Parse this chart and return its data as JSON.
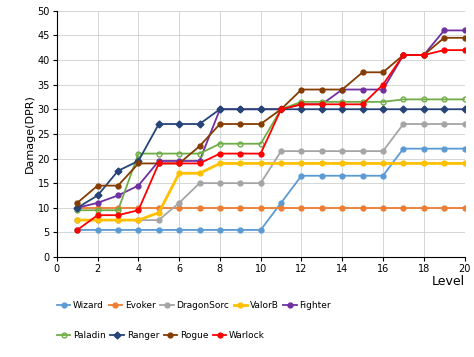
{
  "title": "",
  "xlabel": "Level",
  "ylabel": "Damage(DPR)",
  "xlim": [
    0,
    20
  ],
  "ylim": [
    0,
    50
  ],
  "xticks": [
    0,
    2,
    4,
    6,
    8,
    10,
    12,
    14,
    16,
    18,
    20
  ],
  "yticks": [
    0,
    5,
    10,
    15,
    20,
    25,
    30,
    35,
    40,
    45,
    50
  ],
  "series": {
    "Wizard": {
      "x": [
        1,
        2,
        3,
        4,
        5,
        6,
        7,
        8,
        9,
        10,
        11,
        12,
        13,
        14,
        15,
        16,
        17,
        18,
        19,
        20
      ],
      "y": [
        5.5,
        5.5,
        5.5,
        5.5,
        5.5,
        5.5,
        5.5,
        5.5,
        5.5,
        5.5,
        11,
        16.5,
        16.5,
        16.5,
        16.5,
        16.5,
        22,
        22,
        22,
        22
      ],
      "color": "#5B9BD5",
      "marker": "o",
      "marker_size": 3.5,
      "linewidth": 1.3
    },
    "Evoker": {
      "x": [
        1,
        2,
        3,
        4,
        5,
        6,
        7,
        8,
        9,
        10,
        11,
        12,
        13,
        14,
        15,
        16,
        17,
        18,
        19,
        20
      ],
      "y": [
        10,
        10,
        10,
        10,
        10,
        10,
        10,
        10,
        10,
        10,
        10,
        10,
        10,
        10,
        10,
        10,
        10,
        10,
        10,
        10
      ],
      "color": "#ED7D31",
      "marker": "o",
      "marker_size": 3.5,
      "linewidth": 1.3
    },
    "DragonSorc": {
      "x": [
        1,
        2,
        3,
        4,
        5,
        6,
        7,
        8,
        9,
        10,
        11,
        12,
        13,
        14,
        15,
        16,
        17,
        18,
        19,
        20
      ],
      "y": [
        7.5,
        7.5,
        7.5,
        7.5,
        7.5,
        11,
        15,
        15,
        15,
        15,
        21.5,
        21.5,
        21.5,
        21.5,
        21.5,
        21.5,
        27,
        27,
        27,
        27
      ],
      "color": "#A5A5A5",
      "marker": "o",
      "marker_size": 3.5,
      "linewidth": 1.3
    },
    "ValorB": {
      "x": [
        1,
        2,
        3,
        4,
        5,
        6,
        7,
        8,
        9,
        10,
        11,
        12,
        13,
        14,
        15,
        16,
        17,
        18,
        19,
        20
      ],
      "y": [
        7.5,
        7.5,
        7.5,
        7.5,
        9,
        17,
        17,
        19,
        19,
        19,
        19,
        19,
        19,
        19,
        19,
        19,
        19,
        19,
        19,
        19
      ],
      "color": "#FFC000",
      "marker": "o",
      "marker_size": 3.5,
      "linewidth": 2.0
    },
    "Fighter": {
      "x": [
        1,
        2,
        3,
        4,
        5,
        6,
        7,
        8,
        9,
        10,
        11,
        12,
        13,
        14,
        15,
        16,
        17,
        18,
        19,
        20
      ],
      "y": [
        10,
        11,
        12.5,
        14.5,
        19.5,
        19.5,
        19.5,
        30,
        30,
        30,
        30,
        31,
        31,
        34,
        34,
        34,
        41,
        41,
        46,
        46
      ],
      "color": "#7030A0",
      "marker": "o",
      "marker_size": 3.5,
      "linewidth": 1.3
    },
    "Paladin": {
      "x": [
        1,
        2,
        3,
        4,
        5,
        6,
        7,
        8,
        9,
        10,
        11,
        12,
        13,
        14,
        15,
        16,
        17,
        18,
        19,
        20
      ],
      "y": [
        9.5,
        9.5,
        9.5,
        21,
        21,
        21,
        21,
        23,
        23,
        23,
        30,
        31.5,
        31.5,
        31.5,
        31.5,
        31.5,
        32,
        32,
        32,
        32
      ],
      "color": "#70AD47",
      "marker": "o",
      "marker_size": 3.5,
      "marker_facecolor": "none",
      "linewidth": 1.3
    },
    "Ranger": {
      "x": [
        1,
        2,
        3,
        4,
        5,
        6,
        7,
        8,
        9,
        10,
        11,
        12,
        13,
        14,
        15,
        16,
        17,
        18,
        19,
        20
      ],
      "y": [
        10,
        12.5,
        17.5,
        19.5,
        27,
        27,
        27,
        30,
        30,
        30,
        30,
        30,
        30,
        30,
        30,
        30,
        30,
        30,
        30,
        30
      ],
      "color": "#264478",
      "marker": "D",
      "marker_size": 3.5,
      "linewidth": 1.3
    },
    "Rogue": {
      "x": [
        1,
        2,
        3,
        4,
        5,
        6,
        7,
        8,
        9,
        10,
        11,
        12,
        13,
        14,
        15,
        16,
        17,
        18,
        19,
        20
      ],
      "y": [
        11,
        14.5,
        14.5,
        19,
        19,
        19,
        22.5,
        27,
        27,
        27,
        30,
        34,
        34,
        34,
        37.5,
        37.5,
        41,
        41,
        44.5,
        44.5
      ],
      "color": "#843C00",
      "marker": "o",
      "marker_size": 3.5,
      "linewidth": 1.3
    },
    "Warlock": {
      "x": [
        1,
        2,
        3,
        4,
        5,
        6,
        7,
        8,
        9,
        10,
        11,
        12,
        13,
        14,
        15,
        16,
        17,
        18,
        19,
        20
      ],
      "y": [
        5.5,
        8.5,
        8.5,
        9.5,
        19,
        19,
        19,
        21,
        21,
        21,
        30,
        31,
        31,
        31,
        31,
        35,
        41,
        41,
        42,
        42
      ],
      "color": "#FF0000",
      "marker": "o",
      "marker_size": 3.5,
      "linewidth": 1.3
    }
  },
  "legend_row1": [
    "Wizard",
    "Evoker",
    "DragonSorc",
    "ValorB",
    "Fighter"
  ],
  "legend_row2": [
    "Paladin",
    "Ranger",
    "Rogue",
    "Warlock"
  ],
  "background_color": "#FFFFFF",
  "grid_color": "#D0D0D0"
}
